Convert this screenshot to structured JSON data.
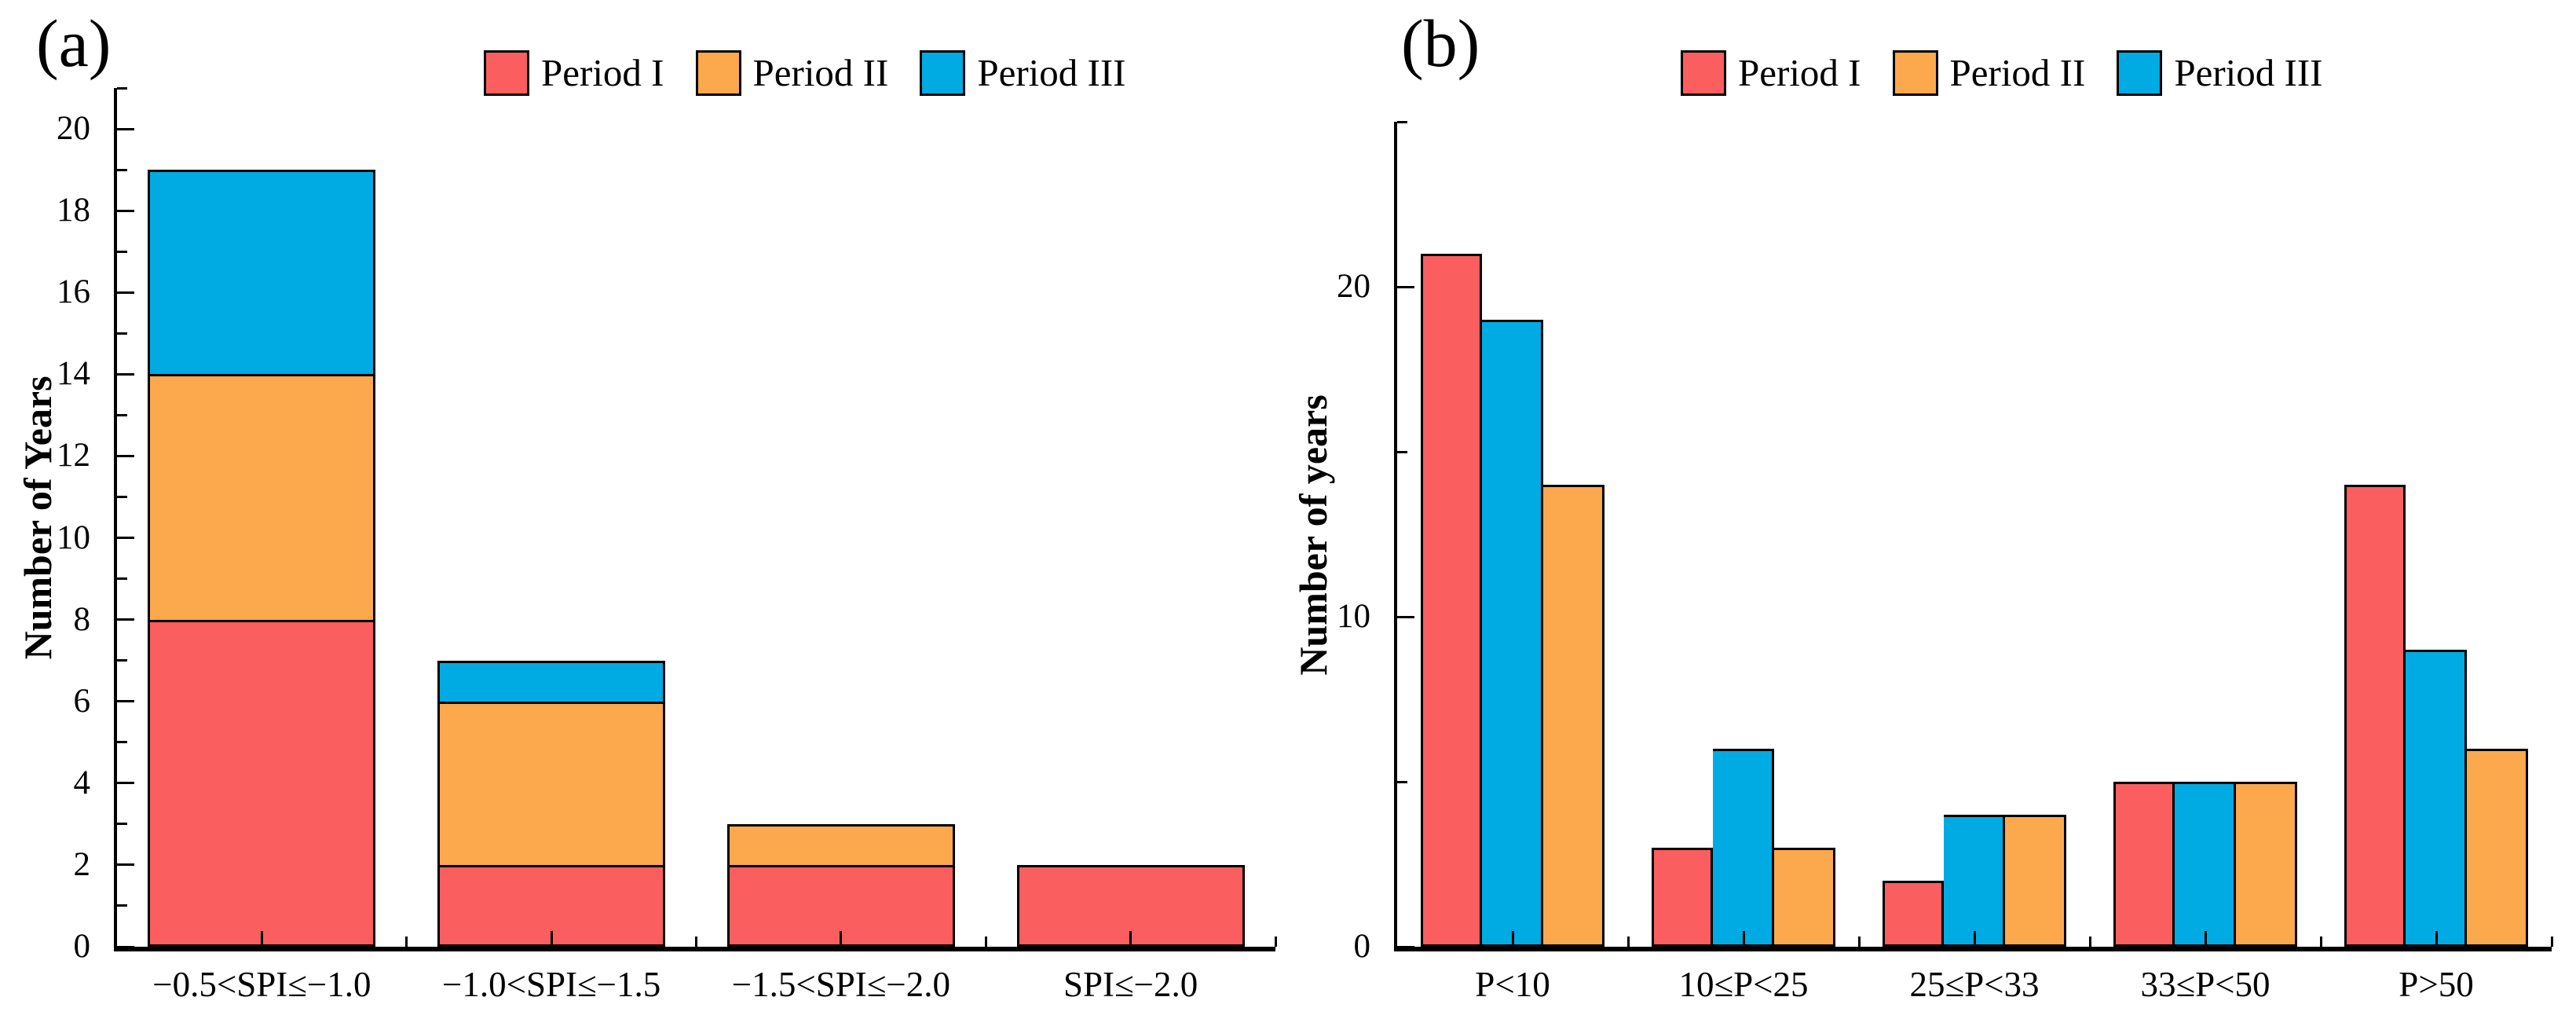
{
  "figure": {
    "background": "#ffffff",
    "axis_color": "#000000",
    "legend_labels": [
      "Period I",
      "Period II",
      "Period III"
    ],
    "series_colors": {
      "Period I": "#FB5E5F",
      "Period II": "#FCA84C",
      "Period III": "#00ABE3"
    }
  },
  "chart_data": [
    {
      "panel_label": "(a)",
      "type": "bar",
      "stacked": true,
      "title": "",
      "xlabel": "",
      "ylabel": "Number of Years",
      "categories": [
        "−0.5<SPI≤−1.0",
        "−1.0<SPI≤−1.5",
        "−1.5<SPI≤−2.0",
        "SPI≤−2.0"
      ],
      "series": [
        {
          "name": "Period I",
          "color": "#FB5E5F",
          "values": [
            8,
            2,
            2,
            2
          ]
        },
        {
          "name": "Period II",
          "color": "#FCA84C",
          "values": [
            6,
            4,
            1,
            0
          ]
        },
        {
          "name": "Period III",
          "color": "#00ABE3",
          "values": [
            5,
            1,
            0,
            0
          ]
        }
      ],
      "stack_totals": [
        19,
        7,
        3,
        2
      ],
      "display_order": [
        0,
        1,
        2
      ],
      "ylim": [
        0,
        21
      ],
      "ytick_step": 2,
      "yminor_step": 1,
      "ytick_labels": [
        "0",
        "2",
        "4",
        "6",
        "8",
        "10",
        "12",
        "14",
        "16",
        "18",
        "20"
      ],
      "grid": false,
      "legend_position": "top"
    },
    {
      "panel_label": "(b)",
      "type": "bar",
      "stacked": false,
      "title": "",
      "xlabel": "",
      "ylabel": "Number of years",
      "categories": [
        "P<10",
        "10≤P<25",
        "25≤P<33",
        "33≤P<50",
        "P>50"
      ],
      "series": [
        {
          "name": "Period I",
          "color": "#FB5E5F",
          "values": [
            21,
            3,
            2,
            5,
            14
          ]
        },
        {
          "name": "Period II",
          "color": "#FCA84C",
          "values": [
            14,
            3,
            4,
            5,
            6
          ]
        },
        {
          "name": "Period III",
          "color": "#00ABE3",
          "values": [
            19,
            6,
            4,
            5,
            9
          ]
        }
      ],
      "display_order": [
        0,
        2,
        1
      ],
      "ylim": [
        0,
        25
      ],
      "ytick_step": 10,
      "yminor_step": 5,
      "ytick_labels": [
        "0",
        "10",
        "20"
      ],
      "grid": false,
      "legend_position": "top"
    }
  ]
}
